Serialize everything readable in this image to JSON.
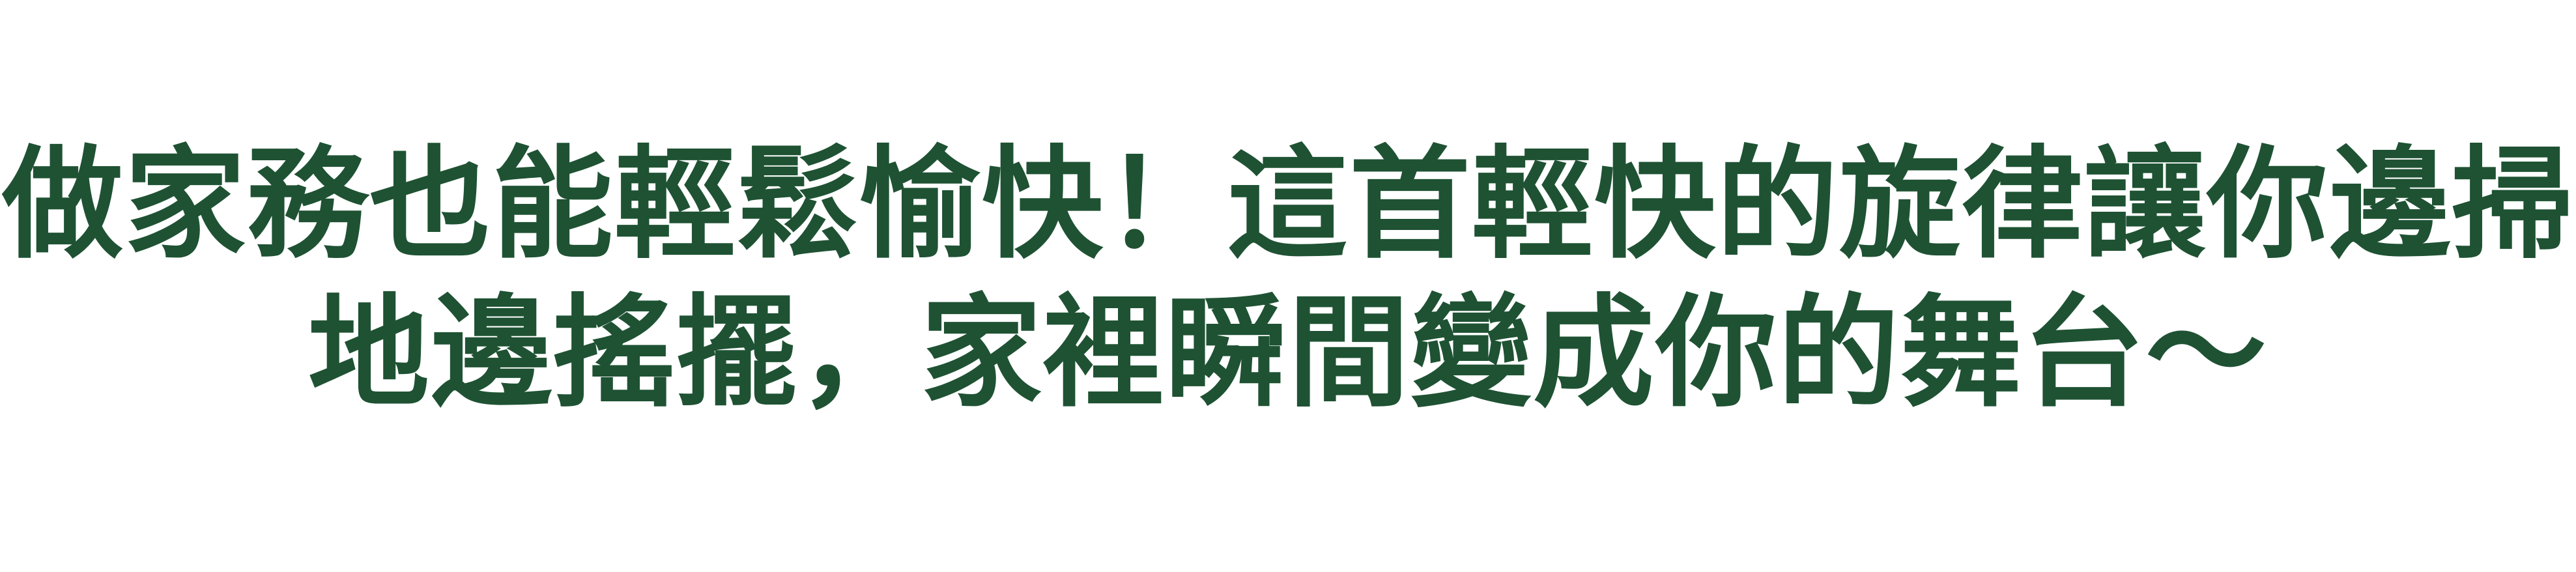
{
  "caption": {
    "line1": "做家務也能輕鬆愉快！這首輕快的旋律讓你邊掃",
    "line2": "地邊搖擺，家裡瞬間變成你的舞台～"
  },
  "colors": {
    "background": "#ffffff",
    "text": "#1e5233"
  }
}
